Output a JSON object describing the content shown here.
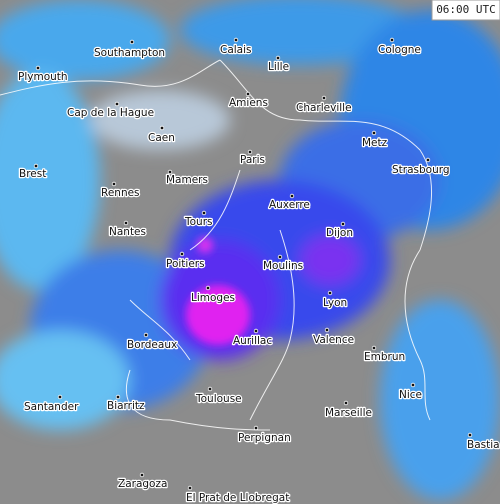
{
  "time": "06:00 UTC",
  "cities": [
    {
      "label": "Southampton"
    },
    {
      "label": "Calais"
    },
    {
      "label": "Cologne"
    },
    {
      "label": "Plymouth"
    },
    {
      "label": "Lille"
    },
    {
      "label": "Amiens"
    },
    {
      "label": "Charleville"
    },
    {
      "label": "Cap de la Hague"
    },
    {
      "label": "Caen"
    },
    {
      "label": "Metz"
    },
    {
      "label": "Paris"
    },
    {
      "label": "Brest"
    },
    {
      "label": "Mamers"
    },
    {
      "label": "Strasbourg"
    },
    {
      "label": "Rennes"
    },
    {
      "label": "Auxerre"
    },
    {
      "label": "Tours"
    },
    {
      "label": "Nantes"
    },
    {
      "label": "Dijon"
    },
    {
      "label": "Poitiers"
    },
    {
      "label": "Moulins"
    },
    {
      "label": "Limoges"
    },
    {
      "label": "Lyon"
    },
    {
      "label": "Aurillac"
    },
    {
      "label": "Valence"
    },
    {
      "label": "Bordeaux"
    },
    {
      "label": "Embrun"
    },
    {
      "label": "Nice"
    },
    {
      "label": "Toulouse"
    },
    {
      "label": "Santander"
    },
    {
      "label": "Biarritz"
    },
    {
      "label": "Marseille"
    },
    {
      "label": "Bastia"
    },
    {
      "label": "Perpignan"
    },
    {
      "label": "Zaragoza"
    },
    {
      "label": "El Prat de Llobregat"
    }
  ]
}
